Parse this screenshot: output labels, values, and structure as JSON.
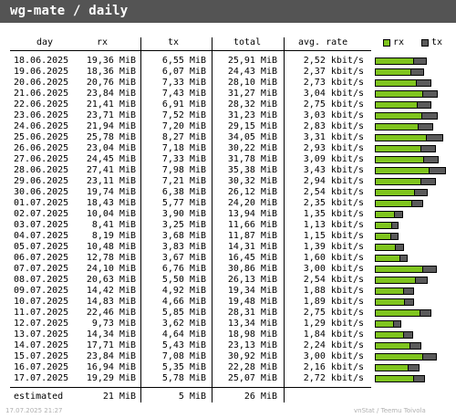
{
  "title": "wg-mate / daily",
  "headers": {
    "day": "day",
    "rx": "rx",
    "tx": "tx",
    "total": "total",
    "avg": "avg. rate"
  },
  "legend": {
    "rx": "rx",
    "tx": "tx"
  },
  "colors": {
    "rx": "#7fc41e",
    "tx": "#5a5a5a",
    "titlebar": "#545454"
  },
  "rows": [
    {
      "day": "18.06.2025",
      "rx": "19,36 MiB",
      "tx": "6,55 MiB",
      "total": "25,91 MiB",
      "avg": "2,52 kbit/s",
      "rx_v": 19.36,
      "tx_v": 6.55
    },
    {
      "day": "19.06.2025",
      "rx": "18,36 MiB",
      "tx": "6,07 MiB",
      "total": "24,43 MiB",
      "avg": "2,37 kbit/s",
      "rx_v": 18.36,
      "tx_v": 6.07
    },
    {
      "day": "20.06.2025",
      "rx": "20,76 MiB",
      "tx": "7,33 MiB",
      "total": "28,10 MiB",
      "avg": "2,73 kbit/s",
      "rx_v": 20.76,
      "tx_v": 7.33
    },
    {
      "day": "21.06.2025",
      "rx": "23,84 MiB",
      "tx": "7,43 MiB",
      "total": "31,27 MiB",
      "avg": "3,04 kbit/s",
      "rx_v": 23.84,
      "tx_v": 7.43
    },
    {
      "day": "22.06.2025",
      "rx": "21,41 MiB",
      "tx": "6,91 MiB",
      "total": "28,32 MiB",
      "avg": "2,75 kbit/s",
      "rx_v": 21.41,
      "tx_v": 6.91
    },
    {
      "day": "23.06.2025",
      "rx": "23,71 MiB",
      "tx": "7,52 MiB",
      "total": "31,23 MiB",
      "avg": "3,03 kbit/s",
      "rx_v": 23.71,
      "tx_v": 7.52
    },
    {
      "day": "24.06.2025",
      "rx": "21,94 MiB",
      "tx": "7,20 MiB",
      "total": "29,15 MiB",
      "avg": "2,83 kbit/s",
      "rx_v": 21.94,
      "tx_v": 7.2
    },
    {
      "day": "25.06.2025",
      "rx": "25,78 MiB",
      "tx": "8,27 MiB",
      "total": "34,05 MiB",
      "avg": "3,31 kbit/s",
      "rx_v": 25.78,
      "tx_v": 8.27
    },
    {
      "day": "26.06.2025",
      "rx": "23,04 MiB",
      "tx": "7,18 MiB",
      "total": "30,22 MiB",
      "avg": "2,93 kbit/s",
      "rx_v": 23.04,
      "tx_v": 7.18
    },
    {
      "day": "27.06.2025",
      "rx": "24,45 MiB",
      "tx": "7,33 MiB",
      "total": "31,78 MiB",
      "avg": "3,09 kbit/s",
      "rx_v": 24.45,
      "tx_v": 7.33
    },
    {
      "day": "28.06.2025",
      "rx": "27,41 MiB",
      "tx": "7,98 MiB",
      "total": "35,38 MiB",
      "avg": "3,43 kbit/s",
      "rx_v": 27.41,
      "tx_v": 7.98
    },
    {
      "day": "29.06.2025",
      "rx": "23,11 MiB",
      "tx": "7,21 MiB",
      "total": "30,32 MiB",
      "avg": "2,94 kbit/s",
      "rx_v": 23.11,
      "tx_v": 7.21
    },
    {
      "day": "30.06.2025",
      "rx": "19,74 MiB",
      "tx": "6,38 MiB",
      "total": "26,12 MiB",
      "avg": "2,54 kbit/s",
      "rx_v": 19.74,
      "tx_v": 6.38
    },
    {
      "day": "01.07.2025",
      "rx": "18,43 MiB",
      "tx": "5,77 MiB",
      "total": "24,20 MiB",
      "avg": "2,35 kbit/s",
      "rx_v": 18.43,
      "tx_v": 5.77
    },
    {
      "day": "02.07.2025",
      "rx": "10,04 MiB",
      "tx": "3,90 MiB",
      "total": "13,94 MiB",
      "avg": "1,35 kbit/s",
      "rx_v": 10.04,
      "tx_v": 3.9
    },
    {
      "day": "03.07.2025",
      "rx": "8,41 MiB",
      "tx": "3,25 MiB",
      "total": "11,66 MiB",
      "avg": "1,13 kbit/s",
      "rx_v": 8.41,
      "tx_v": 3.25
    },
    {
      "day": "04.07.2025",
      "rx": "8,19 MiB",
      "tx": "3,68 MiB",
      "total": "11,87 MiB",
      "avg": "1,15 kbit/s",
      "rx_v": 8.19,
      "tx_v": 3.68
    },
    {
      "day": "05.07.2025",
      "rx": "10,48 MiB",
      "tx": "3,83 MiB",
      "total": "14,31 MiB",
      "avg": "1,39 kbit/s",
      "rx_v": 10.48,
      "tx_v": 3.83
    },
    {
      "day": "06.07.2025",
      "rx": "12,78 MiB",
      "tx": "3,67 MiB",
      "total": "16,45 MiB",
      "avg": "1,60 kbit/s",
      "rx_v": 12.78,
      "tx_v": 3.67
    },
    {
      "day": "07.07.2025",
      "rx": "24,10 MiB",
      "tx": "6,76 MiB",
      "total": "30,86 MiB",
      "avg": "3,00 kbit/s",
      "rx_v": 24.1,
      "tx_v": 6.76
    },
    {
      "day": "08.07.2025",
      "rx": "20,63 MiB",
      "tx": "5,50 MiB",
      "total": "26,13 MiB",
      "avg": "2,54 kbit/s",
      "rx_v": 20.63,
      "tx_v": 5.5
    },
    {
      "day": "09.07.2025",
      "rx": "14,42 MiB",
      "tx": "4,92 MiB",
      "total": "19,34 MiB",
      "avg": "1,88 kbit/s",
      "rx_v": 14.42,
      "tx_v": 4.92
    },
    {
      "day": "10.07.2025",
      "rx": "14,83 MiB",
      "tx": "4,66 MiB",
      "total": "19,48 MiB",
      "avg": "1,89 kbit/s",
      "rx_v": 14.83,
      "tx_v": 4.66
    },
    {
      "day": "11.07.2025",
      "rx": "22,46 MiB",
      "tx": "5,85 MiB",
      "total": "28,31 MiB",
      "avg": "2,75 kbit/s",
      "rx_v": 22.46,
      "tx_v": 5.85
    },
    {
      "day": "12.07.2025",
      "rx": "9,73 MiB",
      "tx": "3,62 MiB",
      "total": "13,34 MiB",
      "avg": "1,29 kbit/s",
      "rx_v": 9.73,
      "tx_v": 3.62
    },
    {
      "day": "13.07.2025",
      "rx": "14,34 MiB",
      "tx": "4,64 MiB",
      "total": "18,98 MiB",
      "avg": "1,84 kbit/s",
      "rx_v": 14.34,
      "tx_v": 4.64
    },
    {
      "day": "14.07.2025",
      "rx": "17,71 MiB",
      "tx": "5,43 MiB",
      "total": "23,13 MiB",
      "avg": "2,24 kbit/s",
      "rx_v": 17.71,
      "tx_v": 5.43
    },
    {
      "day": "15.07.2025",
      "rx": "23,84 MiB",
      "tx": "7,08 MiB",
      "total": "30,92 MiB",
      "avg": "3,00 kbit/s",
      "rx_v": 23.84,
      "tx_v": 7.08
    },
    {
      "day": "16.07.2025",
      "rx": "16,94 MiB",
      "tx": "5,35 MiB",
      "total": "22,28 MiB",
      "avg": "2,16 kbit/s",
      "rx_v": 16.94,
      "tx_v": 5.35
    },
    {
      "day": "17.07.2025",
      "rx": "19,29 MiB",
      "tx": "5,78 MiB",
      "total": "25,07 MiB",
      "avg": "2,72 kbit/s",
      "rx_v": 19.29,
      "tx_v": 5.78
    }
  ],
  "estimated": {
    "label": "estimated",
    "rx": "21 MiB",
    "tx": "5 MiB",
    "total": "26 MiB"
  },
  "footer": {
    "left": "17.07.2025 21:27",
    "right": "vnStat / Teemu Toivola"
  }
}
